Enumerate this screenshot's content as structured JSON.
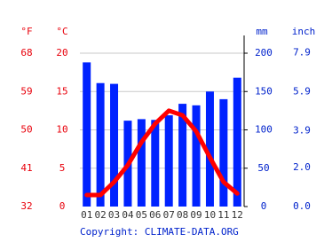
{
  "chart_data": {
    "type": "bar_line",
    "categories": [
      "01",
      "02",
      "03",
      "04",
      "05",
      "06",
      "07",
      "08",
      "09",
      "10",
      "11",
      "12"
    ],
    "series": [
      {
        "type": "bar",
        "axis": "y2",
        "color": "#0022ff",
        "values": [
          188,
          161,
          160,
          112,
          114,
          113,
          119,
          134,
          132,
          150,
          140,
          168
        ]
      },
      {
        "type": "line",
        "color": "#ff0000",
        "values": [
          1.5,
          1.5,
          3.2,
          5.4,
          8.4,
          10.8,
          12.5,
          11.9,
          9.8,
          6.4,
          3.2,
          1.7
        ]
      }
    ],
    "ylabel": "°C",
    "ylim": [
      0,
      20
    ],
    "yticks": [
      0,
      5,
      10,
      15,
      20
    ],
    "yf_label": "°F",
    "yf_lim": [
      32,
      68
    ],
    "yf_ticks": [
      32,
      41,
      50,
      59,
      68
    ],
    "y2label": "mm",
    "y2lim": [
      0,
      200
    ],
    "y2ticks": [
      0,
      50,
      100,
      150,
      200
    ],
    "yin_label": "inch",
    "yin_lim": [
      0,
      7.87
    ],
    "yin_ticks": [
      {
        "value": 0,
        "label": "0.0"
      },
      {
        "value": 2,
        "label": "2.0"
      },
      {
        "value": 3.9,
        "label": "3.9"
      },
      {
        "value": 5.9,
        "label": "5.9"
      },
      {
        "value": 7.9,
        "label": "7.9"
      }
    ],
    "grid": true,
    "footer": "Copyright: CLIMATE-DATA.ORG"
  }
}
